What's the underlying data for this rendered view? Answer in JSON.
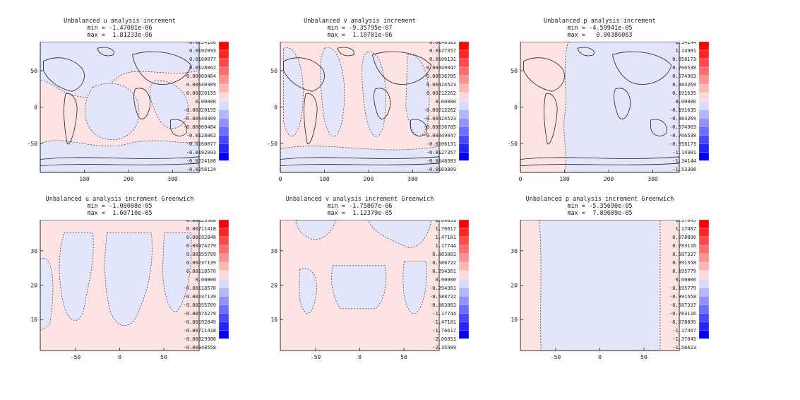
{
  "chart_data": [
    {
      "type": "heatmap",
      "title": "Unbalanced u analysis increment",
      "min_label": "min = -1.47081e-06",
      "max_label": "max =  1.81233e-06",
      "xticks": [
        100,
        200,
        300
      ],
      "yticks": [
        50,
        0,
        -50
      ],
      "xlim": [
        0,
        360
      ],
      "ylim": [
        -90,
        90
      ],
      "has_map": true,
      "colorbar": [
        "0.0224108",
        "0.0192093",
        "0.0160077",
        "0.0128062",
        "0.00960464",
        "0.00640309",
        "0.00320155",
        "0.00000",
        "-0.00320155",
        "-0.00640309",
        "-0.00960464",
        "-0.0128062",
        "-0.0160077",
        "-0.0192093",
        "-0.0224108",
        "-0.0256124"
      ]
    },
    {
      "type": "heatmap",
      "title": "Unbalanced v analysis increment",
      "min_label": "min = -9.35795e-07",
      "max_label": "max =  1.10701e-06",
      "xticks": [
        0,
        100,
        200,
        300
      ],
      "yticks": [
        50,
        0,
        -50
      ],
      "xlim": [
        0,
        360
      ],
      "ylim": [
        -90,
        90
      ],
      "has_map": true,
      "colorbar": [
        "0.0148583",
        "0.0127357",
        "0.0106131",
        "0.00849047",
        "0.00636785",
        "0.00424523",
        "0.00212262",
        "0.00000",
        "-0.00212262",
        "-0.00424523",
        "-0.00636785",
        "-0.00849047",
        "-0.0106131",
        "-0.0127357",
        "-0.0148583",
        "-0.0169809"
      ]
    },
    {
      "type": "heatmap",
      "title": "Unbalanced p analysis increment",
      "min_label": "min = -4.59941e-05",
      "max_label": "max =   0.00386063",
      "xticks": [
        0,
        100,
        200,
        300
      ],
      "yticks": [
        50,
        0,
        -50
      ],
      "xlim": [
        0,
        360
      ],
      "ylim": [
        -90,
        90
      ],
      "has_map": true,
      "colorbar": [
        "1.34144",
        "1.14981",
        "0.958173",
        "0.766538",
        "0.574903",
        "0.383269",
        "0.191635",
        "0.00000",
        "-0.191635",
        "-0.383269",
        "-0.574903",
        "-0.766538",
        "-0.958173",
        "-1.14981",
        "-1.34144",
        "-1.53308"
      ]
    },
    {
      "type": "heatmap",
      "title": "Unbalanced u analysis increment Greenwich",
      "min_label": "min = -1.08008e-05",
      "max_label": "max =  1.60710e-05",
      "xticks": [
        -50,
        0,
        50
      ],
      "yticks": [
        30,
        20,
        10
      ],
      "xlim": [
        -90,
        90
      ],
      "ylim": [
        1,
        39
      ],
      "has_map": false,
      "colorbar": [
        "0.00829988",
        "0.00711418",
        "0.00592848",
        "0.00474279",
        "0.00355709",
        "0.00237139",
        "0.00118570",
        "0.00000",
        "-0.00118570",
        "-0.00237139",
        "-0.00355709",
        "-0.00474279",
        "-0.00592849",
        "-0.00711418",
        "-0.00829988",
        "-0.00948558"
      ]
    },
    {
      "type": "heatmap",
      "title": "Unbalanced v analysis increment Greenwich",
      "min_label": "min = -1.75867e-06",
      "max_label": "max =  1.12379e-05",
      "xticks": [
        -50,
        0,
        50
      ],
      "yticks": [
        30,
        20,
        10
      ],
      "xlim": [
        -90,
        90
      ],
      "ylim": [
        1,
        39
      ],
      "has_map": false,
      "colorbar": [
        "2.06053",
        "1.76617",
        "1.47181",
        "1.17744",
        "0.883083",
        "0.588722",
        "0.294361",
        "0.00000",
        "-0.294361",
        "-0.588722",
        "-0.883083",
        "-1.17744",
        "-1.47181",
        "-1.76617",
        "-2.06053",
        "-2.35489"
      ]
    },
    {
      "type": "heatmap",
      "title": "Unbalanced p analysis increment Greenwich",
      "min_label": "min = -5.35690e-05",
      "max_label": "max =  7.89609e-05",
      "xticks": [
        -50,
        0,
        50
      ],
      "yticks": [
        30,
        20,
        10
      ],
      "xlim": [
        -90,
        90
      ],
      "ylim": [
        1,
        39
      ],
      "has_map": false,
      "colorbar": [
        "1.37045",
        "1.17467",
        "0.978896",
        "0.783116",
        "0.587337",
        "0.391558",
        "0.195779",
        "0.00000",
        "-0.195779",
        "-0.391558",
        "-0.587337",
        "-0.783116",
        "-0.978895",
        "-1.17467",
        "-1.37045",
        "-1.56623"
      ]
    }
  ],
  "colors": {
    "positive_light": "#fde3e3",
    "negative_light": "#e3e5fb",
    "scale_pos": [
      "#ff0000",
      "#ff2424",
      "#ff4848",
      "#ff6d6d",
      "#ff9191",
      "#ffb6b6",
      "#ffdada"
    ],
    "scale_neg": [
      "#dadaff",
      "#b6b6ff",
      "#9191ff",
      "#6d6dff",
      "#4848ff",
      "#2424ff",
      "#0000ff"
    ]
  }
}
